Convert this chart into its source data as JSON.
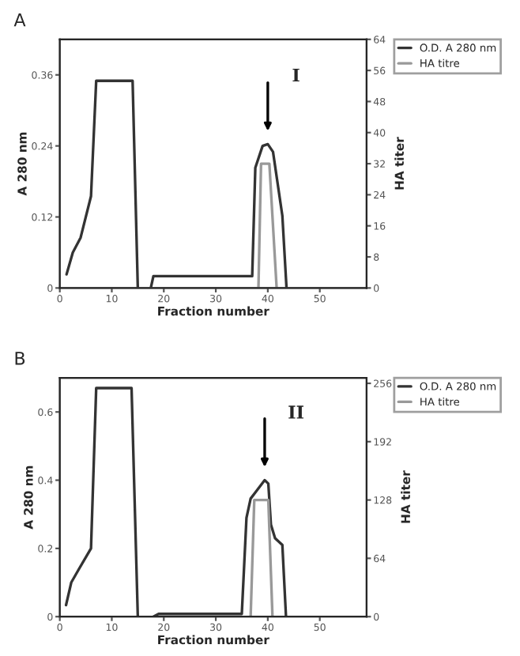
{
  "chart_data": [
    {
      "type": "line",
      "title": "A",
      "xlabel": "Fraction number",
      "ylabel": "A 280 nm",
      "y2label": "HA titer",
      "xlim": [
        0,
        59
      ],
      "xticks": [
        0,
        10,
        20,
        30,
        40,
        50
      ],
      "ylim": [
        0,
        0.42
      ],
      "yticks": [
        0,
        0.12,
        0.24,
        0.36
      ],
      "y2lim": [
        0,
        64
      ],
      "y2ticks": [
        0,
        8,
        16,
        24,
        32,
        40,
        48,
        56,
        64
      ],
      "legend": "top right",
      "grid": false,
      "series": [
        {
          "name": "O.D. A 280 nm",
          "color": "#333333",
          "x": [
            1.3,
            2.5,
            4,
            6,
            7,
            14,
            15,
            null,
            17.5,
            18,
            37,
            37.6,
            39,
            40,
            41,
            42.8,
            43.6
          ],
          "values": [
            0.023,
            0.06,
            0.085,
            0.155,
            0.35,
            0.35,
            0,
            null,
            0,
            0.02,
            0.02,
            0.203,
            0.24,
            0.243,
            0.23,
            0.122,
            0
          ]
        },
        {
          "name": "HA titre",
          "color": "#999999",
          "axis": "y2",
          "x": [
            38.2,
            38.7,
            40.3,
            41.7
          ],
          "values": [
            0,
            32,
            32,
            0
          ]
        }
      ],
      "annotations": [
        "I"
      ]
    },
    {
      "type": "line",
      "title": "B",
      "xlabel": "Fraction number",
      "ylabel": "A 280 nm",
      "y2label": "HA titer",
      "xlim": [
        0,
        59
      ],
      "xticks": [
        0,
        10,
        20,
        30,
        40,
        50
      ],
      "ylim": [
        0,
        0.7
      ],
      "yticks": [
        0,
        0.2,
        0.4,
        0.6
      ],
      "y2lim": [
        0,
        262
      ],
      "y2ticks": [
        0,
        64,
        128,
        192,
        256
      ],
      "legend": "top right",
      "grid": false,
      "series": [
        {
          "name": "O.D. A 280 nm",
          "color": "#333333",
          "x": [
            1.2,
            2.2,
            3.7,
            6,
            7,
            13.8,
            15,
            null,
            18,
            19,
            35,
            35.9,
            36.7,
            37.9,
            39.4,
            40.1,
            40.6,
            41.4,
            42.8,
            43.5
          ],
          "values": [
            0.034,
            0.1,
            0.14,
            0.2,
            0.67,
            0.67,
            0,
            null,
            0,
            0.008,
            0.008,
            0.29,
            0.346,
            0.37,
            0.4,
            0.39,
            0.27,
            0.23,
            0.21,
            0
          ]
        },
        {
          "name": "HA titre",
          "color": "#999999",
          "axis": "y2",
          "x": [
            36.7,
            37.4,
            40.1,
            40.9
          ],
          "values": [
            0,
            128,
            128,
            0
          ]
        }
      ],
      "annotations": [
        "II"
      ]
    }
  ]
}
